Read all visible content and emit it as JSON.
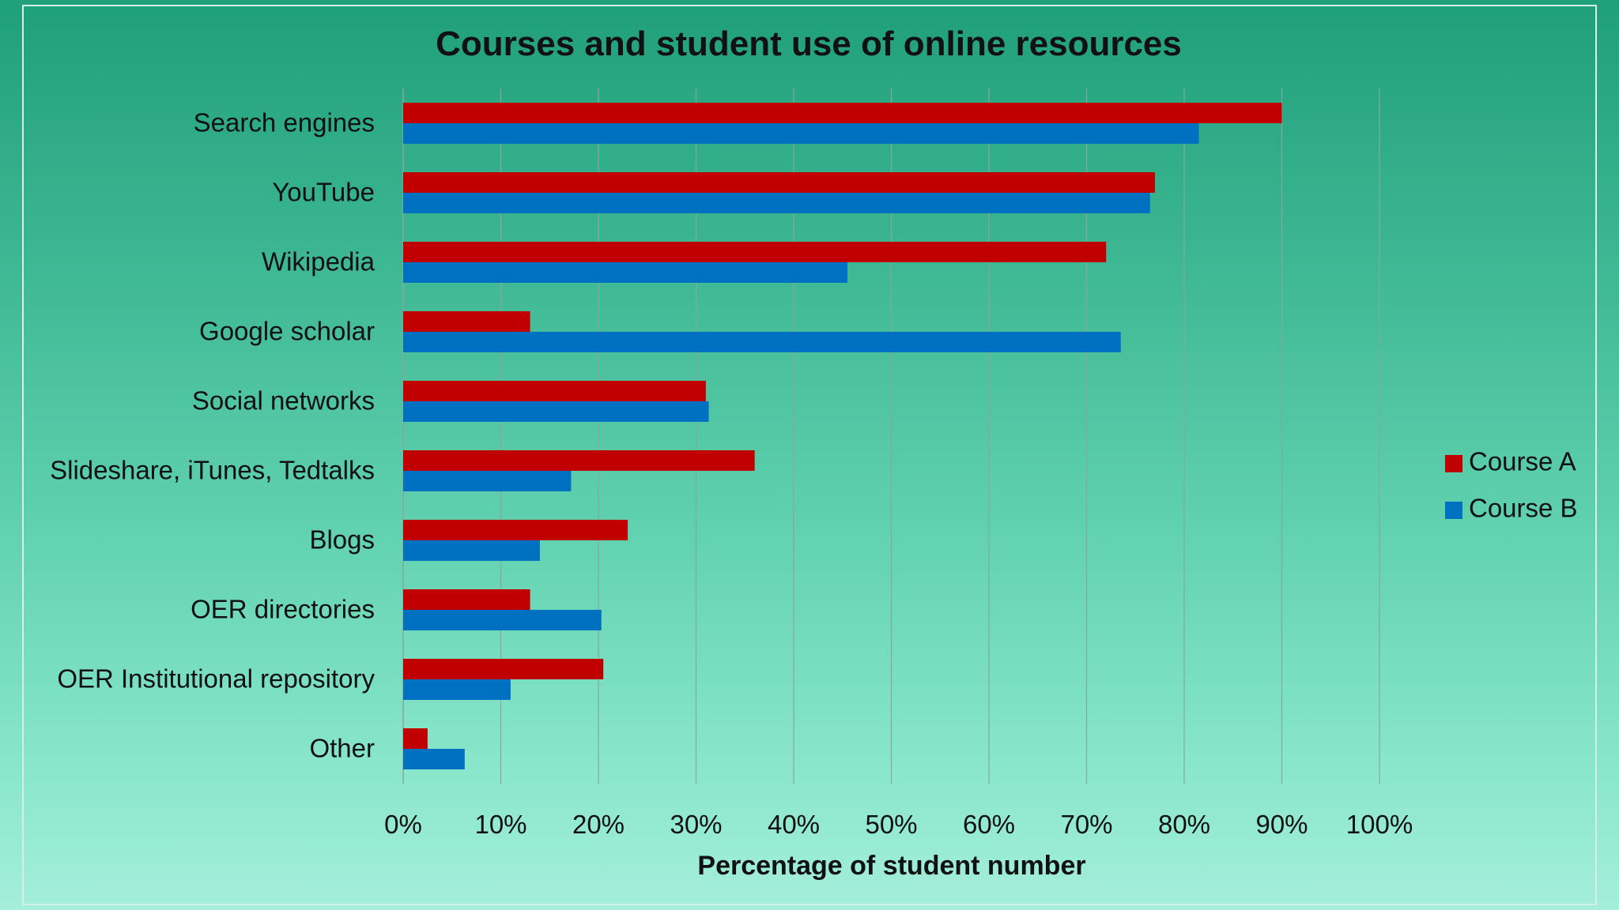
{
  "chart_data": {
    "type": "bar",
    "orientation": "horizontal",
    "title": "Courses and student use of online resources",
    "xlabel": "Percentage of student number",
    "ylabel": "",
    "xlim": [
      0,
      100
    ],
    "x_ticks": [
      "0%",
      "10%",
      "20%",
      "30%",
      "40%",
      "50%",
      "60%",
      "70%",
      "80%",
      "90%",
      "100%"
    ],
    "grid": true,
    "legend_position": "right",
    "categories": [
      "Search engines",
      "YouTube",
      "Wikipedia",
      "Google scholar",
      "Social networks",
      "Slideshare, iTunes, Tedtalks",
      "Blogs",
      "OER directories",
      "OER Institutional repository",
      "Other"
    ],
    "series": [
      {
        "name": "Course A",
        "color": "#c00000",
        "values": [
          90,
          77,
          72,
          13,
          31,
          36,
          23,
          13,
          20.5,
          2.5
        ]
      },
      {
        "name": "Course B",
        "color": "#0070c0",
        "values": [
          81.5,
          76.5,
          45.5,
          73.5,
          31.3,
          17.2,
          14,
          20.3,
          11,
          6.3
        ]
      }
    ]
  }
}
